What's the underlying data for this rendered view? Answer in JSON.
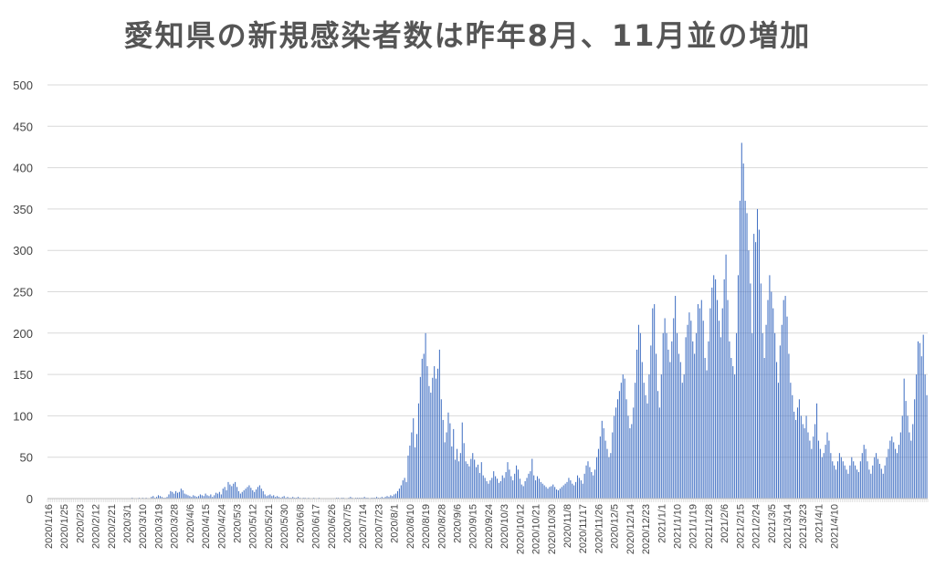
{
  "chart_data": {
    "type": "bar",
    "title": "愛知県の新規感染者数は昨年8月、11月並の増加",
    "xlabel": "",
    "ylabel": "",
    "ylim": [
      0,
      500
    ],
    "yticks": [
      0,
      50,
      100,
      150,
      200,
      250,
      300,
      350,
      400,
      450,
      500
    ],
    "grid": true,
    "legend": "none",
    "bar_color": "#4472c4",
    "date_range": [
      "2020/1/16",
      "2021/4/10"
    ],
    "xtick_labels": [
      "2020/1/16",
      "2020/1/25",
      "2020/2/3",
      "2020/2/12",
      "2020/2/21",
      "2020/3/1",
      "2020/3/10",
      "2020/3/19",
      "2020/3/28",
      "2020/4/6",
      "2020/4/15",
      "2020/4/24",
      "2020/5/3",
      "2020/5/12",
      "2020/5/21",
      "2020/5/30",
      "2020/6/8",
      "2020/6/17",
      "2020/6/26",
      "2020/7/5",
      "2020/7/14",
      "2020/7/23",
      "2020/8/1",
      "2020/8/10",
      "2020/8/19",
      "2020/8/28",
      "2020/9/6",
      "2020/9/15",
      "2020/9/24",
      "2020/10/3",
      "2020/10/12",
      "2020/10/21",
      "2020/10/30",
      "2020/11/8",
      "2020/11/17",
      "2020/11/26",
      "2020/12/5",
      "2020/12/14",
      "2020/12/23",
      "2021/1/1",
      "2021/1/10",
      "2021/1/19",
      "2021/1/28",
      "2021/2/6",
      "2021/2/15",
      "2021/2/24",
      "2021/3/5",
      "2021/3/14",
      "2021/3/23",
      "2021/4/1",
      "2021/4/10"
    ],
    "values": [
      0,
      0,
      0,
      0,
      0,
      0,
      0,
      0,
      0,
      0,
      0,
      0,
      0,
      0,
      0,
      0,
      0,
      0,
      0,
      0,
      0,
      0,
      0,
      0,
      0,
      0,
      0,
      0,
      0,
      0,
      0,
      0,
      0,
      0,
      0,
      0,
      0,
      0,
      0,
      0,
      0,
      0,
      0,
      0,
      0,
      0,
      0,
      0,
      1,
      0,
      0,
      0,
      1,
      0,
      1,
      0,
      1,
      0,
      0,
      2,
      3,
      1,
      2,
      4,
      3,
      2,
      1,
      1,
      2,
      5,
      9,
      8,
      6,
      9,
      7,
      8,
      12,
      10,
      6,
      5,
      4,
      3,
      2,
      4,
      3,
      2,
      3,
      5,
      4,
      3,
      6,
      4,
      3,
      5,
      2,
      4,
      7,
      6,
      8,
      5,
      12,
      14,
      10,
      20,
      17,
      15,
      18,
      20,
      14,
      9,
      6,
      8,
      10,
      12,
      14,
      16,
      13,
      10,
      8,
      11,
      14,
      16,
      12,
      9,
      5,
      3,
      4,
      5,
      3,
      4,
      2,
      3,
      2,
      1,
      2,
      3,
      1,
      2,
      1,
      1,
      2,
      1,
      1,
      2,
      1,
      0,
      1,
      1,
      0,
      1,
      0,
      0,
      1,
      0,
      0,
      1,
      0,
      0,
      0,
      0,
      0,
      0,
      0,
      0,
      0,
      1,
      1,
      0,
      1,
      1,
      0,
      0,
      1,
      2,
      1,
      0,
      1,
      1,
      1,
      1,
      1,
      2,
      1,
      1,
      0,
      1,
      1,
      1,
      2,
      1,
      1,
      2,
      1,
      2,
      3,
      2,
      4,
      3,
      5,
      6,
      9,
      12,
      16,
      22,
      25,
      20,
      52,
      64,
      80,
      97,
      62,
      78,
      115,
      147,
      169,
      175,
      200,
      160,
      136,
      128,
      146,
      160,
      145,
      157,
      180,
      120,
      95,
      68,
      80,
      104,
      91,
      63,
      84,
      47,
      60,
      45,
      55,
      92,
      67,
      45,
      42,
      39,
      48,
      55,
      47,
      38,
      41,
      31,
      44,
      28,
      25,
      21,
      18,
      22,
      25,
      33,
      27,
      24,
      19,
      21,
      28,
      25,
      32,
      44,
      35,
      27,
      22,
      30,
      40,
      35,
      24,
      17,
      15,
      21,
      25,
      30,
      33,
      48,
      28,
      22,
      27,
      24,
      20,
      18,
      16,
      14,
      12,
      14,
      15,
      17,
      14,
      11,
      10,
      12,
      14,
      16,
      18,
      20,
      25,
      22,
      18,
      16,
      20,
      28,
      25,
      22,
      18,
      30,
      40,
      45,
      38,
      32,
      28,
      35,
      50,
      60,
      75,
      94,
      85,
      70,
      60,
      50,
      55,
      80,
      100,
      110,
      120,
      130,
      140,
      150,
      145,
      120,
      100,
      85,
      90,
      110,
      140,
      180,
      210,
      200,
      165,
      140,
      125,
      115,
      150,
      185,
      230,
      235,
      175,
      130,
      110,
      150,
      200,
      218,
      200,
      180,
      165,
      190,
      218,
      245,
      200,
      175,
      165,
      140,
      150,
      195,
      210,
      225,
      215,
      190,
      175,
      200,
      235,
      230,
      240,
      215,
      170,
      155,
      190,
      230,
      255,
      270,
      265,
      240,
      215,
      195,
      230,
      265,
      295,
      240,
      190,
      170,
      160,
      150,
      200,
      270,
      360,
      430,
      405,
      360,
      345,
      300,
      260,
      200,
      320,
      310,
      350,
      325,
      260,
      200,
      170,
      210,
      240,
      270,
      250,
      230,
      200,
      165,
      140,
      185,
      210,
      240,
      245,
      220,
      175,
      140,
      125,
      105,
      95,
      110,
      120,
      100,
      90,
      85,
      100,
      80,
      70,
      60,
      75,
      90,
      115,
      70,
      60,
      50,
      55,
      65,
      80,
      70,
      55,
      45,
      40,
      35,
      45,
      55,
      50,
      45,
      40,
      35,
      30,
      40,
      50,
      45,
      40,
      35,
      32,
      45,
      55,
      65,
      60,
      45,
      35,
      30,
      40,
      50,
      55,
      48,
      42,
      36,
      30,
      40,
      50,
      60,
      70,
      75,
      68,
      60,
      55,
      65,
      80,
      100,
      145,
      118,
      100,
      80,
      70,
      90,
      120,
      150,
      190,
      188,
      172,
      198,
      150,
      125
    ]
  }
}
